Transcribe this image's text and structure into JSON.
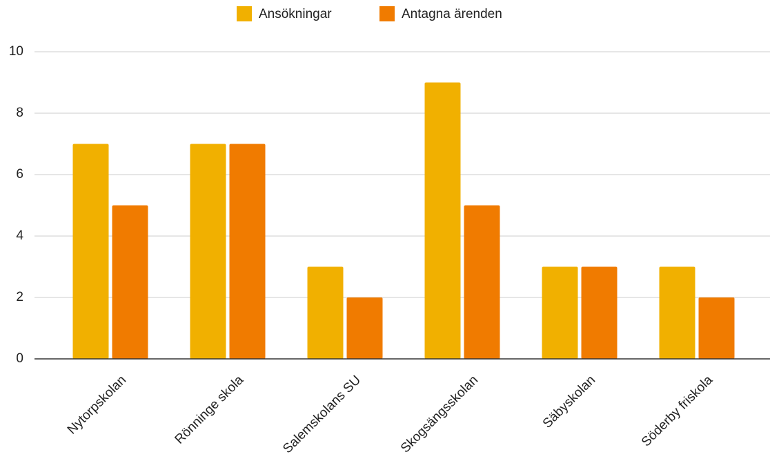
{
  "chart_data": {
    "type": "bar",
    "categories": [
      "Nytorpskolan",
      "Rönninge skola",
      "Salemskolans SU",
      "Skogsängsskolan",
      "Säbyskolan",
      "Söderby friskola"
    ],
    "series": [
      {
        "name": "Ansökningar",
        "color": "#f1b000",
        "values": [
          7,
          7,
          3,
          9,
          3,
          3
        ]
      },
      {
        "name": "Antagna ärenden",
        "color": "#f07b00",
        "values": [
          5,
          7,
          2,
          5,
          3,
          2
        ]
      }
    ],
    "ylim": [
      0,
      10
    ],
    "yticks": [
      0,
      2,
      4,
      6,
      8,
      10
    ],
    "grid": true,
    "legend": "top"
  }
}
